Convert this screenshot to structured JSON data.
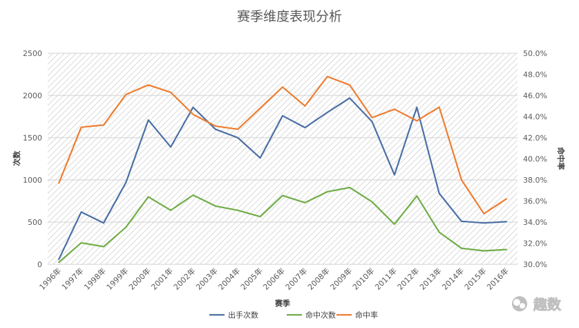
{
  "chart_data": {
    "type": "line",
    "title": "赛季维度表现分析",
    "xlabel": "赛季",
    "ylabel_left": "次数",
    "ylabel_right": "命中率",
    "categories": [
      "1996年",
      "1997年",
      "1998年",
      "1999年",
      "2000年",
      "2001年",
      "2002年",
      "2003年",
      "2004年",
      "2005年",
      "2006年",
      "2007年",
      "2008年",
      "2009年",
      "2010年",
      "2011年",
      "2012年",
      "2013年",
      "2014年",
      "2015年",
      "2016年"
    ],
    "ylim_left": [
      0,
      2500
    ],
    "yticks_left": [
      "0",
      "500",
      "1000",
      "1500",
      "2000",
      "2500"
    ],
    "ylim_right": [
      0.3,
      0.5
    ],
    "yticks_right": [
      "30.0%",
      "32.0%",
      "34.0%",
      "36.0%",
      "38.0%",
      "40.0%",
      "42.0%",
      "44.0%",
      "46.0%",
      "48.0%",
      "50.0%"
    ],
    "series": [
      {
        "name": "出手次数",
        "axis": "left",
        "color": "#4a6fa5",
        "values": [
          60,
          620,
          490,
          970,
          1710,
          1390,
          1860,
          1600,
          1500,
          1260,
          1760,
          1620,
          1800,
          1970,
          1690,
          1060,
          1860,
          840,
          510,
          490,
          505
        ]
      },
      {
        "name": "命中次数",
        "axis": "left",
        "color": "#70ad47",
        "values": [
          25,
          255,
          210,
          440,
          800,
          640,
          820,
          690,
          640,
          565,
          815,
          730,
          860,
          910,
          740,
          475,
          810,
          380,
          190,
          160,
          175
        ]
      },
      {
        "name": "命中率",
        "axis": "right",
        "color": "#ed7d31",
        "values": [
          0.377,
          0.43,
          0.432,
          0.461,
          0.47,
          0.463,
          0.442,
          0.431,
          0.428,
          0.448,
          0.468,
          0.45,
          0.478,
          0.47,
          0.439,
          0.447,
          0.436,
          0.449,
          0.38,
          0.348,
          0.362
        ]
      }
    ],
    "grid": true,
    "legend_position": "bottom"
  },
  "watermark": {
    "text": "趣数"
  }
}
